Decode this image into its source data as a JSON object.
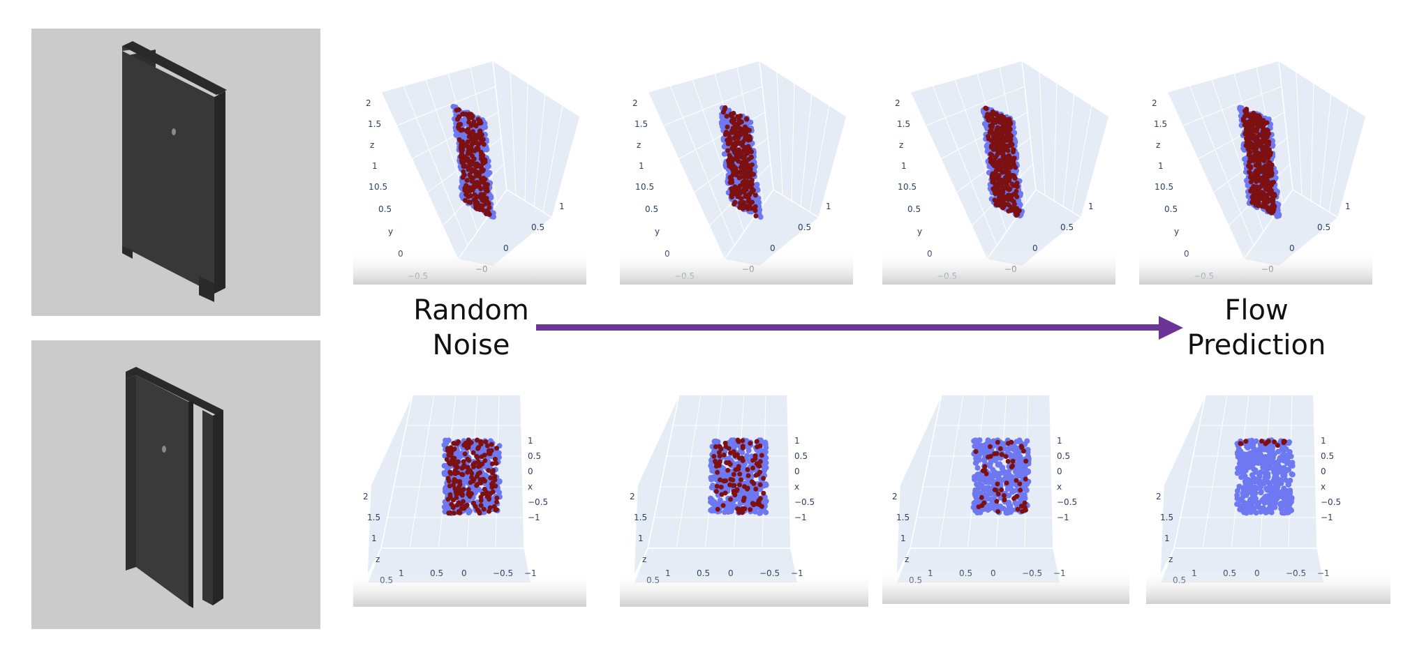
{
  "labels": {
    "start": [
      "Random",
      "Noise"
    ],
    "end": [
      "Flow",
      "Prediction"
    ]
  },
  "colors": {
    "background": "#cbcbcb",
    "door": "#333333",
    "plot_bg": "#e5ecf6",
    "point_blue": "#6e78f0",
    "point_red": "#7d1010",
    "arrow": "#6a3596"
  },
  "top_row": {
    "view": "side",
    "axis_ticks": {
      "z": [
        "2",
        "1.5",
        "z",
        "1",
        "0.5"
      ],
      "y": [
        "1",
        "0.5",
        "y",
        "0",
        "−0.5"
      ],
      "x": [
        "−0",
        "0",
        "0.5",
        "1"
      ]
    },
    "red_fraction_by_step": [
      0.55,
      0.6,
      0.75,
      0.85
    ]
  },
  "bottom_row": {
    "view": "front",
    "axis_ticks": {
      "x": [
        "1",
        "0.5",
        "0",
        "x",
        "−0.5",
        "−1"
      ],
      "z": [
        "2",
        "1.5",
        "1",
        "z",
        "0.5"
      ],
      "bottom": [
        "1",
        "0.5",
        "0",
        "−0.5",
        "−1"
      ]
    },
    "red_fraction_by_step": [
      0.45,
      0.25,
      0.12,
      0.03
    ]
  }
}
